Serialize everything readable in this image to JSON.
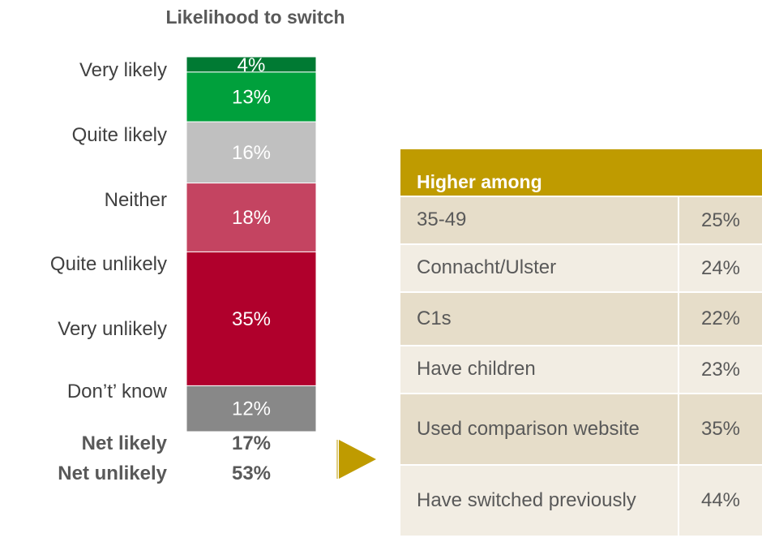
{
  "chart_data": {
    "type": "bar",
    "title": "Likelihood to switch",
    "unit": "%",
    "categories": [
      "Very likely",
      "Quite likely",
      "Neither",
      "Quite unlikely",
      "Very unlikely",
      "Don’t’ know"
    ],
    "segments": [
      {
        "label": "4%",
        "value": 4,
        "color": "#007a33"
      },
      {
        "label": "13%",
        "value": 13,
        "color": "#00a03c"
      },
      {
        "label": "16%",
        "value": 16,
        "color": "#c0c0c0"
      },
      {
        "label": "18%",
        "value": 18,
        "color": "#c44461"
      },
      {
        "label": "35%",
        "value": 35,
        "color": "#b0002c"
      },
      {
        "label": "12%",
        "value": 12,
        "color": "#888888"
      }
    ],
    "net": [
      {
        "label": "Net likely",
        "value": "17%"
      },
      {
        "label": "Net unlikely",
        "value": "53%"
      }
    ]
  },
  "panel": {
    "header": "Higher among",
    "header_color": "#bf9b00",
    "rows": [
      {
        "label": "35-49",
        "value": "25%"
      },
      {
        "label": "Connacht/Ulster",
        "value": "24%"
      },
      {
        "label": "C1s",
        "value": "22%"
      },
      {
        "label": "Have children",
        "value": "23%"
      },
      {
        "label": "Used comparison website",
        "value": "35%"
      },
      {
        "label": "Have switched previously",
        "value": "44%"
      }
    ]
  }
}
